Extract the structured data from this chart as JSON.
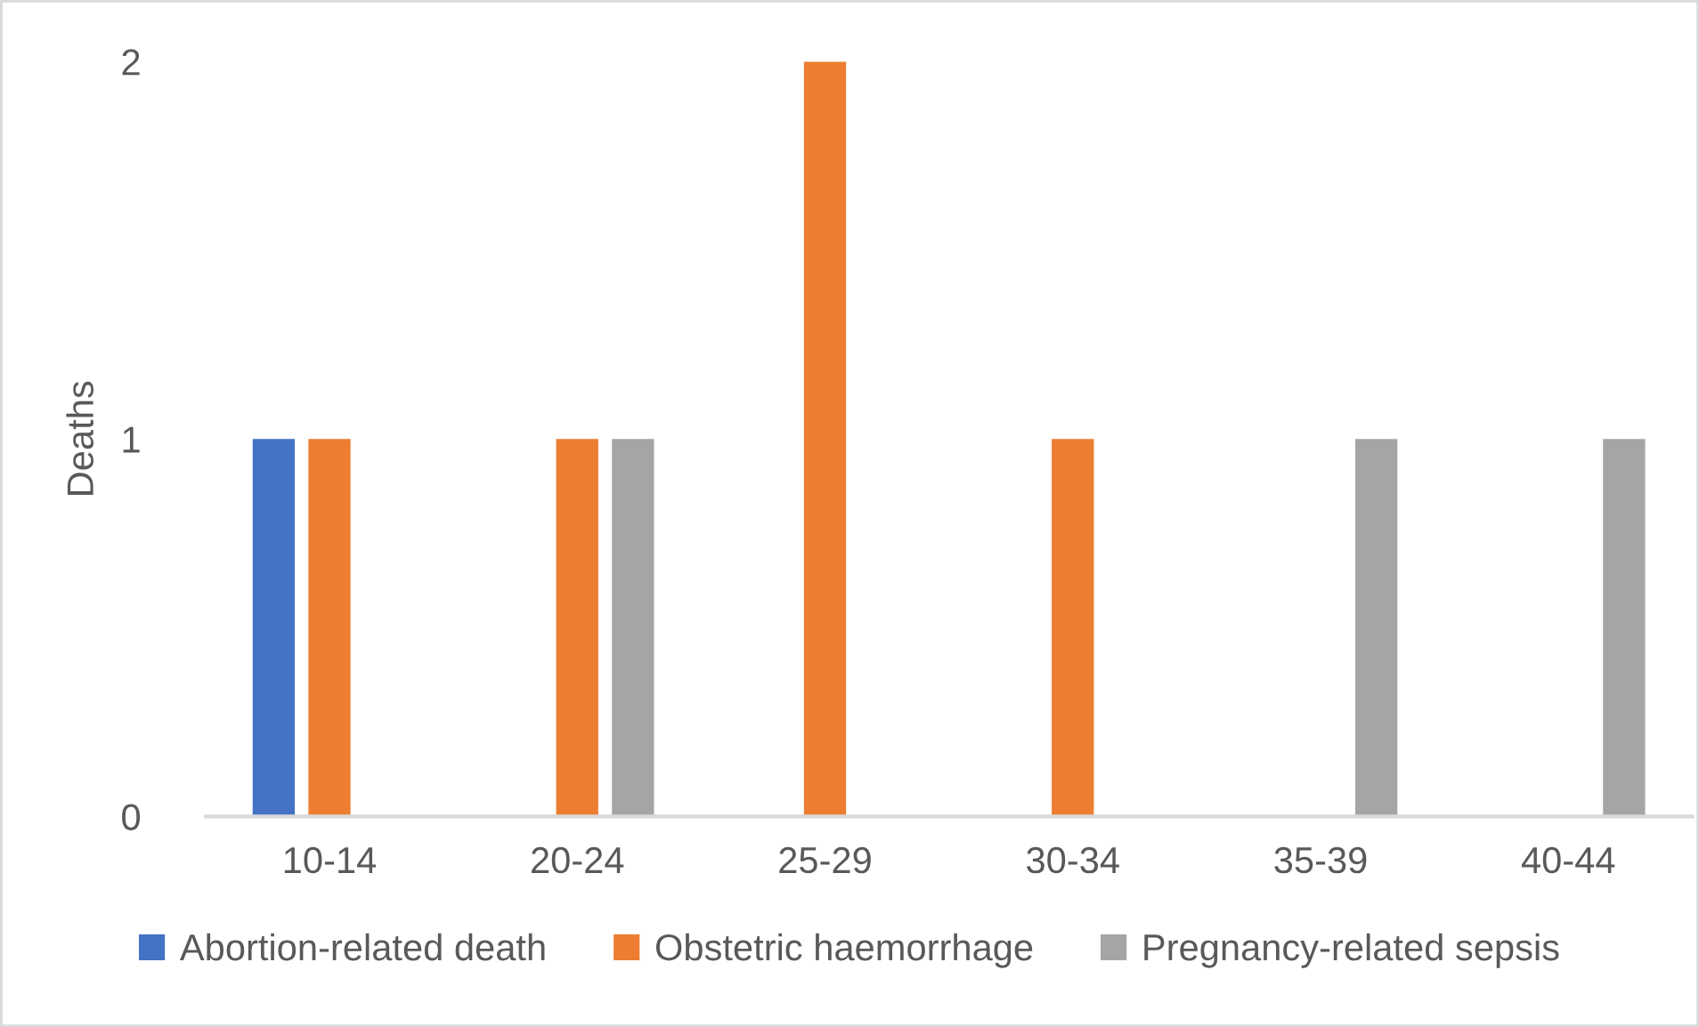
{
  "chart_data": {
    "type": "bar",
    "ylabel": "Deaths",
    "categories": [
      "10-14",
      "20-24",
      "25-29",
      "30-34",
      "35-39",
      "40-44"
    ],
    "series": [
      {
        "name": "Abortion-related death",
        "color": "#4472c4",
        "values": [
          1,
          0,
          0,
          0,
          0,
          0
        ]
      },
      {
        "name": "Obstetric haemorrhage",
        "color": "#ed7d31",
        "values": [
          1,
          1,
          2,
          1,
          0,
          0
        ]
      },
      {
        "name": "Pregnancy-related sepsis",
        "color": "#a5a5a5",
        "values": [
          0,
          1,
          0,
          0,
          1,
          1
        ]
      }
    ],
    "ylim": [
      0,
      2
    ],
    "yticks": [
      0,
      1,
      2
    ],
    "grid": false,
    "legend": "bottom"
  }
}
